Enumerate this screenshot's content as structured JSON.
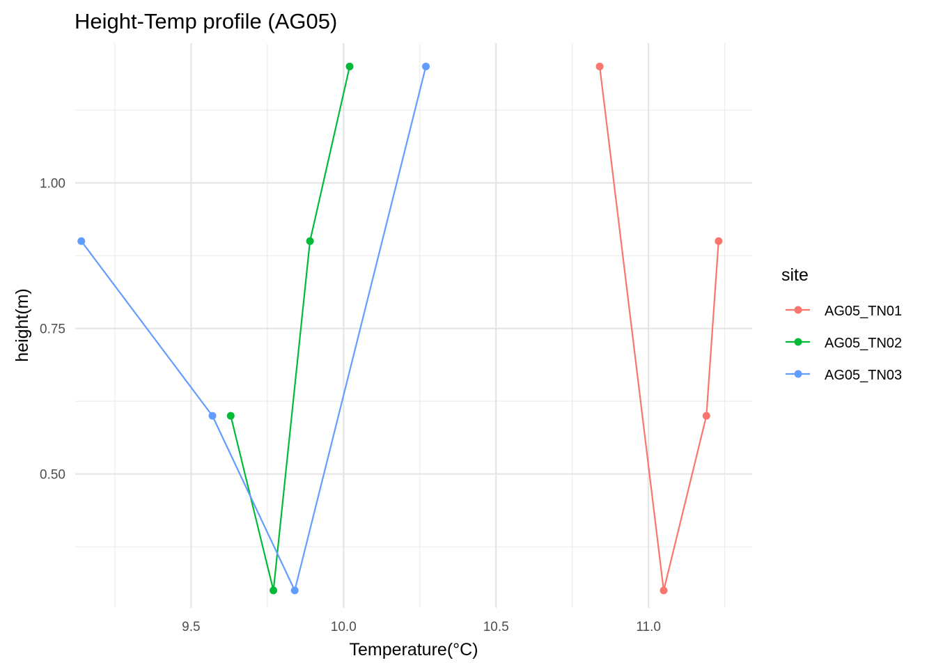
{
  "chart_data": {
    "type": "line",
    "title": "Height-Temp profile (AG05)",
    "xlabel": "Temperature(°C)",
    "ylabel": "height(m)",
    "xlim": [
      9.12,
      11.34
    ],
    "ylim": [
      0.27,
      1.24
    ],
    "x_ticks": [
      9.5,
      10.0,
      10.5,
      11.0
    ],
    "x_tick_labels": [
      "9.5",
      "10.0",
      "10.5",
      "11.0"
    ],
    "x_minor_ticks": [
      9.25,
      9.75,
      10.25,
      10.75,
      11.25
    ],
    "y_ticks": [
      0.5,
      0.75,
      1.0
    ],
    "y_tick_labels": [
      "0.50",
      "0.75",
      "1.00"
    ],
    "y_minor_ticks": [
      0.375,
      0.625,
      0.875,
      1.125
    ],
    "grid": true,
    "legend": {
      "title": "site",
      "position": "right"
    },
    "series": [
      {
        "name": "AG05_TN01",
        "color": "#F8766D",
        "points": [
          [
            10.84,
            1.2
          ],
          [
            11.05,
            0.3
          ],
          [
            11.19,
            0.6
          ],
          [
            11.23,
            0.9
          ]
        ]
      },
      {
        "name": "AG05_TN02",
        "color": "#00BA38",
        "points": [
          [
            9.63,
            0.6
          ],
          [
            9.77,
            0.3
          ],
          [
            9.89,
            0.9
          ],
          [
            10.02,
            1.2
          ]
        ]
      },
      {
        "name": "AG05_TN03",
        "color": "#619CFF",
        "points": [
          [
            9.14,
            0.9
          ],
          [
            9.57,
            0.6
          ],
          [
            9.84,
            0.3
          ],
          [
            10.27,
            1.2
          ]
        ]
      }
    ]
  }
}
